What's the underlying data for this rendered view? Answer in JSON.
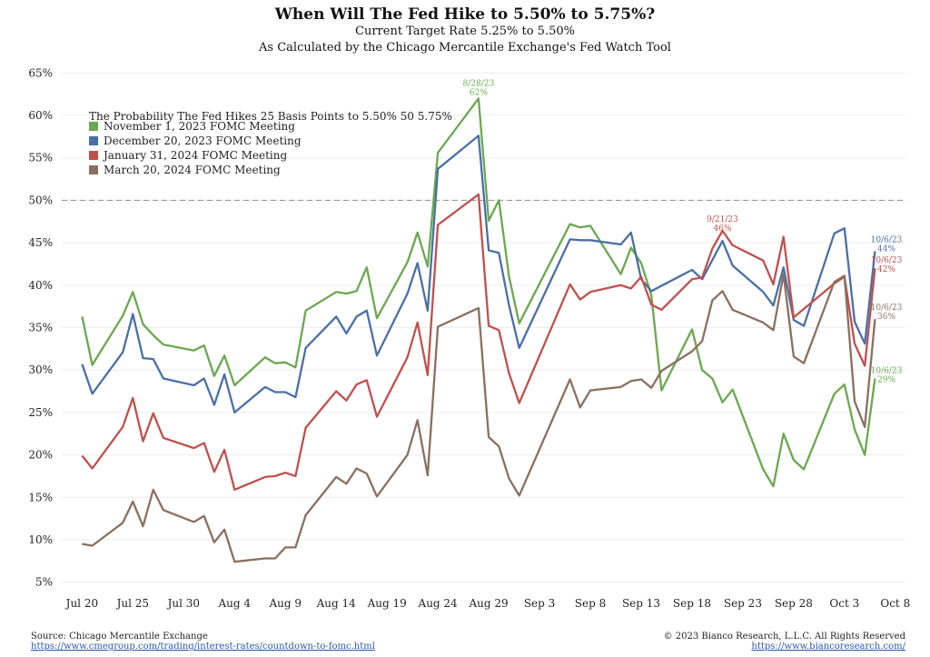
{
  "header": {
    "title": "When Will The Fed Hike to 5.50% to 5.75%?",
    "subtitle1": "Current Target Rate 5.25% to 5.50%",
    "subtitle2": "As Calculated by the Chicago Mercantile Exchange's Fed Watch Tool"
  },
  "legend": {
    "title": "The Probability The Fed Hikes 25 Basis Points to 5.50% 50 5.75%"
  },
  "footer": {
    "source": "Source: Chicago Mercantile Exchange",
    "source_url": "https://www.cmegroup.com/trading/interest-rates/countdown-to-fomc.html",
    "copyright": "© 2023 Bianco Research, L.L.C. All Rights Reserved",
    "copyright_url": "https://www.biancoresearch.com/"
  },
  "chart_data": {
    "type": "line",
    "title": "When Will The Fed Hike to 5.50% to 5.75%?",
    "x_tick_labels": [
      "Jul 20",
      "Jul 25",
      "Jul 30",
      "Aug 4",
      "Aug 9",
      "Aug 14",
      "Aug 19",
      "Aug 24",
      "Aug 29",
      "Sep 3",
      "Sep 8",
      "Sep 13",
      "Sep 18",
      "Sep 23",
      "Sep 28",
      "Oct 3",
      "Oct 8"
    ],
    "y_tick_labels": [
      "5%",
      "10%",
      "15%",
      "20%",
      "25%",
      "30%",
      "35%",
      "40%",
      "45%",
      "50%",
      "55%",
      "60%",
      "65%"
    ],
    "xlim": [
      "2023-07-18",
      "2023-10-09"
    ],
    "ylim": [
      4,
      66
    ],
    "reference_line": 50,
    "legend_position": "top-left",
    "grid": "horizontal",
    "series": [
      {
        "name": "November 1, 2023 FOMC Meeting",
        "color": "#6aa84f",
        "points": [
          [
            "2023-07-20",
            36.3
          ],
          [
            "2023-07-21",
            30.6
          ],
          [
            "2023-07-24",
            36.4
          ],
          [
            "2023-07-25",
            39.2
          ],
          [
            "2023-07-26",
            35.4
          ],
          [
            "2023-07-27",
            34.1
          ],
          [
            "2023-07-28",
            33
          ],
          [
            "2023-07-31",
            32.3
          ],
          [
            "2023-08-01",
            32.9
          ],
          [
            "2023-08-02",
            29.3
          ],
          [
            "2023-08-03",
            31.7
          ],
          [
            "2023-08-04",
            28.2
          ],
          [
            "2023-08-07",
            31.5
          ],
          [
            "2023-08-08",
            30.8
          ],
          [
            "2023-08-09",
            30.9
          ],
          [
            "2023-08-10",
            30.3
          ],
          [
            "2023-08-11",
            37
          ],
          [
            "2023-08-14",
            39.2
          ],
          [
            "2023-08-15",
            39
          ],
          [
            "2023-08-16",
            39.3
          ],
          [
            "2023-08-17",
            42.1
          ],
          [
            "2023-08-18",
            36.1
          ],
          [
            "2023-08-21",
            42.7
          ],
          [
            "2023-08-22",
            46.2
          ],
          [
            "2023-08-23",
            42.2
          ],
          [
            "2023-08-24",
            55.6
          ],
          [
            "2023-08-28",
            62
          ],
          [
            "2023-08-29",
            47.6
          ],
          [
            "2023-08-30",
            50
          ],
          [
            "2023-08-31",
            41
          ],
          [
            "2023-09-01",
            35.5
          ],
          [
            "2023-09-06",
            47.2
          ],
          [
            "2023-09-07",
            46.8
          ],
          [
            "2023-09-08",
            47
          ],
          [
            "2023-09-11",
            41.3
          ],
          [
            "2023-09-12",
            44.4
          ],
          [
            "2023-09-13",
            42.6
          ],
          [
            "2023-09-14",
            38.8
          ],
          [
            "2023-09-15",
            27.6
          ],
          [
            "2023-09-18",
            34.8
          ],
          [
            "2023-09-19",
            30
          ],
          [
            "2023-09-20",
            29
          ],
          [
            "2023-09-21",
            26.2
          ],
          [
            "2023-09-22",
            27.7
          ],
          [
            "2023-09-25",
            18.3
          ],
          [
            "2023-09-26",
            16.3
          ],
          [
            "2023-09-27",
            22.5
          ],
          [
            "2023-09-28",
            19.4
          ],
          [
            "2023-09-29",
            18.3
          ],
          [
            "2023-10-02",
            27.2
          ],
          [
            "2023-10-03",
            28.3
          ],
          [
            "2023-10-04",
            23
          ],
          [
            "2023-10-05",
            20
          ],
          [
            "2023-10-06",
            29
          ]
        ],
        "annotations": [
          {
            "date": "2023-08-28",
            "value": 62,
            "label": "8/28/23",
            "value_label": "62%"
          },
          {
            "date": "2023-10-06",
            "value": 29,
            "label": "10/6/23",
            "value_label": "29%"
          }
        ]
      },
      {
        "name": "December 20, 2023 FOMC Meeting",
        "color": "#4a6fa5",
        "points": [
          [
            "2023-07-20",
            30.7
          ],
          [
            "2023-07-21",
            27.2
          ],
          [
            "2023-07-24",
            32.1
          ],
          [
            "2023-07-25",
            36.6
          ],
          [
            "2023-07-26",
            31.4
          ],
          [
            "2023-07-27",
            31.3
          ],
          [
            "2023-07-28",
            29
          ],
          [
            "2023-07-31",
            28.2
          ],
          [
            "2023-08-01",
            29
          ],
          [
            "2023-08-02",
            25.9
          ],
          [
            "2023-08-03",
            29.5
          ],
          [
            "2023-08-04",
            25
          ],
          [
            "2023-08-07",
            28
          ],
          [
            "2023-08-08",
            27.4
          ],
          [
            "2023-08-09",
            27.4
          ],
          [
            "2023-08-10",
            26.8
          ],
          [
            "2023-08-11",
            32.6
          ],
          [
            "2023-08-14",
            36.3
          ],
          [
            "2023-08-15",
            34.3
          ],
          [
            "2023-08-16",
            36.3
          ],
          [
            "2023-08-17",
            37
          ],
          [
            "2023-08-18",
            31.7
          ],
          [
            "2023-08-21",
            39
          ],
          [
            "2023-08-22",
            42.6
          ],
          [
            "2023-08-23",
            37
          ],
          [
            "2023-08-24",
            53.7
          ],
          [
            "2023-08-28",
            57.6
          ],
          [
            "2023-08-29",
            44.1
          ],
          [
            "2023-08-30",
            43.8
          ],
          [
            "2023-08-31",
            37.6
          ],
          [
            "2023-09-01",
            32.6
          ],
          [
            "2023-09-06",
            45.4
          ],
          [
            "2023-09-07",
            45.3
          ],
          [
            "2023-09-08",
            45.3
          ],
          [
            "2023-09-11",
            44.8
          ],
          [
            "2023-09-12",
            46.2
          ],
          [
            "2023-09-13",
            40.7
          ],
          [
            "2023-09-14",
            39.3
          ],
          [
            "2023-09-18",
            41.8
          ],
          [
            "2023-09-19",
            40.7
          ],
          [
            "2023-09-21",
            45.2
          ],
          [
            "2023-09-22",
            42.3
          ],
          [
            "2023-09-25",
            39.2
          ],
          [
            "2023-09-26",
            37.6
          ],
          [
            "2023-09-27",
            42.1
          ],
          [
            "2023-09-28",
            35.9
          ],
          [
            "2023-09-29",
            35.2
          ],
          [
            "2023-10-02",
            46.1
          ],
          [
            "2023-10-03",
            46.7
          ],
          [
            "2023-10-04",
            35.7
          ],
          [
            "2023-10-05",
            33.1
          ],
          [
            "2023-10-06",
            44
          ]
        ],
        "annotations": [
          {
            "date": "2023-10-06",
            "value": 44,
            "label": "10/6/23",
            "value_label": "44%"
          }
        ]
      },
      {
        "name": "January 31, 2024 FOMC Meeting",
        "color": "#c0504d",
        "points": [
          [
            "2023-07-20",
            19.9
          ],
          [
            "2023-07-21",
            18.4
          ],
          [
            "2023-07-24",
            23.3
          ],
          [
            "2023-07-25",
            26.7
          ],
          [
            "2023-07-26",
            21.6
          ],
          [
            "2023-07-27",
            24.9
          ],
          [
            "2023-07-28",
            22
          ],
          [
            "2023-07-31",
            20.8
          ],
          [
            "2023-08-01",
            21.4
          ],
          [
            "2023-08-02",
            18
          ],
          [
            "2023-08-03",
            20.6
          ],
          [
            "2023-08-04",
            15.9
          ],
          [
            "2023-08-07",
            17.4
          ],
          [
            "2023-08-08",
            17.5
          ],
          [
            "2023-08-09",
            17.9
          ],
          [
            "2023-08-10",
            17.5
          ],
          [
            "2023-08-11",
            23.2
          ],
          [
            "2023-08-14",
            27.5
          ],
          [
            "2023-08-15",
            26.4
          ],
          [
            "2023-08-16",
            28.3
          ],
          [
            "2023-08-17",
            28.8
          ],
          [
            "2023-08-18",
            24.5
          ],
          [
            "2023-08-21",
            31.5
          ],
          [
            "2023-08-22",
            35.6
          ],
          [
            "2023-08-23",
            29.4
          ],
          [
            "2023-08-24",
            47.1
          ],
          [
            "2023-08-28",
            50.7
          ],
          [
            "2023-08-29",
            35.2
          ],
          [
            "2023-08-30",
            34.7
          ],
          [
            "2023-08-31",
            29.6
          ],
          [
            "2023-09-01",
            26.1
          ],
          [
            "2023-09-06",
            40.1
          ],
          [
            "2023-09-07",
            38.3
          ],
          [
            "2023-09-08",
            39.2
          ],
          [
            "2023-09-11",
            40
          ],
          [
            "2023-09-12",
            39.6
          ],
          [
            "2023-09-13",
            41
          ],
          [
            "2023-09-14",
            37.7
          ],
          [
            "2023-09-15",
            37.1
          ],
          [
            "2023-09-18",
            40.7
          ],
          [
            "2023-09-19",
            40.9
          ],
          [
            "2023-09-20",
            44.3
          ],
          [
            "2023-09-21",
            46.4
          ],
          [
            "2023-09-22",
            44.7
          ],
          [
            "2023-09-25",
            42.9
          ],
          [
            "2023-09-26",
            40.1
          ],
          [
            "2023-09-27",
            45.7
          ],
          [
            "2023-09-28",
            36.2
          ],
          [
            "2023-10-02",
            40.2
          ],
          [
            "2023-10-03",
            41
          ],
          [
            "2023-10-04",
            33.1
          ],
          [
            "2023-10-05",
            30.5
          ],
          [
            "2023-10-06",
            42
          ]
        ],
        "annotations": [
          {
            "date": "2023-09-21",
            "value": 46,
            "label": "9/21/23",
            "value_label": "46%"
          },
          {
            "date": "2023-10-06",
            "value": 42,
            "label": "10/6/23",
            "value_label": "42%"
          }
        ]
      },
      {
        "name": "March 20, 2024 FOMC Meeting",
        "color": "#8b6f5e",
        "points": [
          [
            "2023-07-20",
            9.5
          ],
          [
            "2023-07-21",
            9.3
          ],
          [
            "2023-07-24",
            12
          ],
          [
            "2023-07-25",
            14.5
          ],
          [
            "2023-07-26",
            11.6
          ],
          [
            "2023-07-27",
            15.9
          ],
          [
            "2023-07-28",
            13.5
          ],
          [
            "2023-07-31",
            12.1
          ],
          [
            "2023-08-01",
            12.8
          ],
          [
            "2023-08-02",
            9.7
          ],
          [
            "2023-08-03",
            11.2
          ],
          [
            "2023-08-04",
            7.4
          ],
          [
            "2023-08-07",
            7.8
          ],
          [
            "2023-08-08",
            7.8
          ],
          [
            "2023-08-09",
            9.1
          ],
          [
            "2023-08-10",
            9.1
          ],
          [
            "2023-08-11",
            12.9
          ],
          [
            "2023-08-14",
            17.4
          ],
          [
            "2023-08-15",
            16.6
          ],
          [
            "2023-08-16",
            18.4
          ],
          [
            "2023-08-17",
            17.8
          ],
          [
            "2023-08-18",
            15.1
          ],
          [
            "2023-08-21",
            20
          ],
          [
            "2023-08-22",
            24.1
          ],
          [
            "2023-08-23",
            17.6
          ],
          [
            "2023-08-24",
            35.1
          ],
          [
            "2023-08-28",
            37.3
          ],
          [
            "2023-08-29",
            22.1
          ],
          [
            "2023-08-30",
            21
          ],
          [
            "2023-08-31",
            17.2
          ],
          [
            "2023-09-01",
            15.2
          ],
          [
            "2023-09-06",
            28.9
          ],
          [
            "2023-09-07",
            25.6
          ],
          [
            "2023-09-08",
            27.6
          ],
          [
            "2023-09-11",
            28
          ],
          [
            "2023-09-12",
            28.7
          ],
          [
            "2023-09-13",
            28.9
          ],
          [
            "2023-09-14",
            27.9
          ],
          [
            "2023-09-15",
            29.9
          ],
          [
            "2023-09-18",
            32.2
          ],
          [
            "2023-09-19",
            33.4
          ],
          [
            "2023-09-20",
            38.2
          ],
          [
            "2023-09-21",
            39.3
          ],
          [
            "2023-09-22",
            37.1
          ],
          [
            "2023-09-25",
            35.6
          ],
          [
            "2023-09-26",
            34.7
          ],
          [
            "2023-09-27",
            41.3
          ],
          [
            "2023-09-28",
            31.6
          ],
          [
            "2023-09-29",
            30.8
          ],
          [
            "2023-10-02",
            40.4
          ],
          [
            "2023-10-03",
            41.1
          ],
          [
            "2023-10-04",
            26.3
          ],
          [
            "2023-10-05",
            23.3
          ],
          [
            "2023-10-06",
            36
          ]
        ],
        "annotations": [
          {
            "date": "2023-10-06",
            "value": 36,
            "label": "10/6/23",
            "value_label": "36%"
          }
        ]
      }
    ]
  }
}
